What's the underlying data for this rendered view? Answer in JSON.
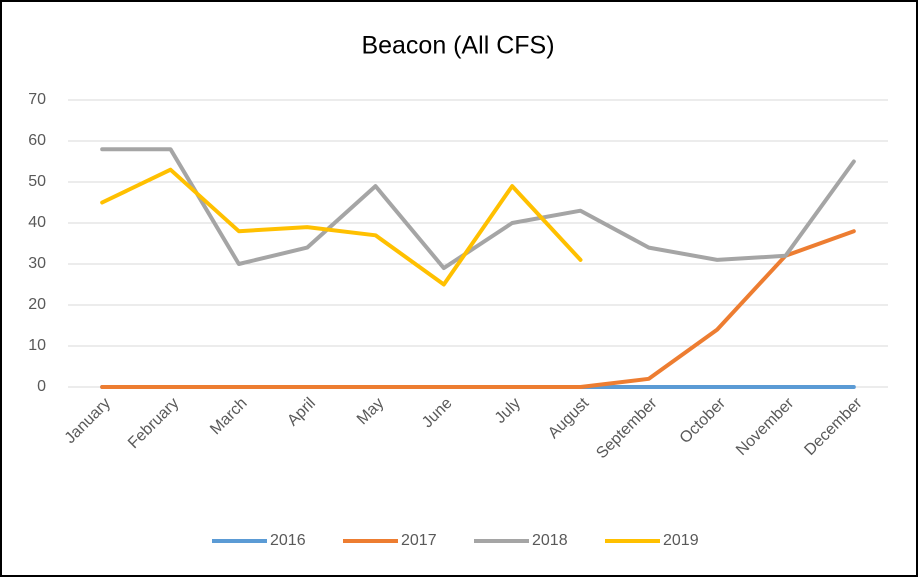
{
  "chart_data": {
    "type": "line",
    "title": "Beacon (All CFS)",
    "categories": [
      "January",
      "February",
      "March",
      "April",
      "May",
      "June",
      "July",
      "August",
      "September",
      "October",
      "November",
      "December"
    ],
    "series": [
      {
        "name": "2016",
        "color": "#5b9bd5",
        "values": [
          0,
          0,
          0,
          0,
          0,
          0,
          0,
          0,
          0,
          0,
          0,
          0
        ]
      },
      {
        "name": "2017",
        "color": "#ed7d31",
        "values": [
          0,
          0,
          0,
          0,
          0,
          0,
          0,
          0,
          2,
          14,
          32,
          38
        ]
      },
      {
        "name": "2018",
        "color": "#a5a5a5",
        "values": [
          58,
          58,
          30,
          34,
          49,
          29,
          40,
          43,
          34,
          31,
          32,
          55
        ]
      },
      {
        "name": "2019",
        "color": "#ffc000",
        "values": [
          45,
          53,
          38,
          39,
          37,
          25,
          49,
          31,
          null,
          null,
          null,
          null
        ]
      }
    ],
    "ylim": [
      0,
      70
    ],
    "yticks": [
      0,
      10,
      20,
      30,
      40,
      50,
      60,
      70
    ],
    "grid": true,
    "legend": "bottom"
  }
}
